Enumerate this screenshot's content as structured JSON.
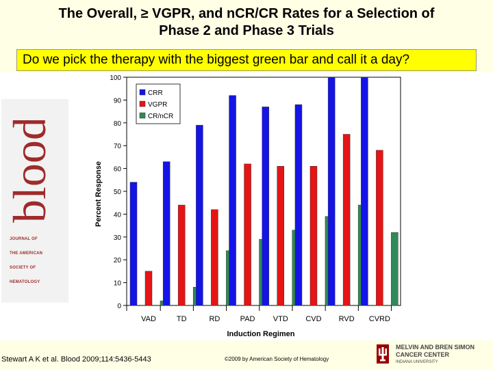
{
  "slide": {
    "title_line1": "The Overall, ≥ VGPR, and nCR/CR Rates for a Selection of",
    "title_line2": "Phase 2 and Phase 3 Trials",
    "question": "Do we pick the therapy with the biggest green bar and call it a day?",
    "citation": "Stewart A K et al. Blood 2009;114:5436-5443",
    "copyright": "©2009 by American Society of Hematology",
    "journal": {
      "logo_text": "blood",
      "lines": [
        "JOURNAL OF",
        "THE AMERICAN",
        "SOCIETY OF",
        "HEMATOLOGY"
      ]
    },
    "center": {
      "line1": "MELVIN AND BREN SIMON",
      "line2": "CANCER CENTER",
      "line3": "INDIANA UNIVERSITY"
    },
    "colors": {
      "background": "#ffffe6",
      "highlight": "#ffff00",
      "logo_red": "#9e2b2b",
      "iu_crimson": "#990000"
    }
  },
  "chart_data": {
    "type": "bar",
    "title": "",
    "xlabel": "Induction Regimen",
    "ylabel": "Percent Response",
    "ylim": [
      0,
      100
    ],
    "yticks": [
      0,
      10,
      20,
      30,
      40,
      50,
      60,
      70,
      80,
      90,
      100
    ],
    "categories": [
      "VAD",
      "TD",
      "RD",
      "PAD",
      "VTD",
      "CVD",
      "RVD",
      "CVRD"
    ],
    "series": [
      {
        "name": "CRR",
        "color": "#1414e6",
        "values": [
          54,
          63,
          79,
          92,
          87,
          88,
          100,
          100
        ]
      },
      {
        "name": "VGPR",
        "color": "#e61414",
        "values": [
          15,
          44,
          42,
          62,
          61,
          61,
          75,
          68
        ]
      },
      {
        "name": "CR/nCR",
        "color": "#2e8b57",
        "values": [
          2,
          8,
          24,
          29,
          33,
          39,
          44,
          32
        ]
      }
    ],
    "legend": "top-left",
    "grid": false
  }
}
